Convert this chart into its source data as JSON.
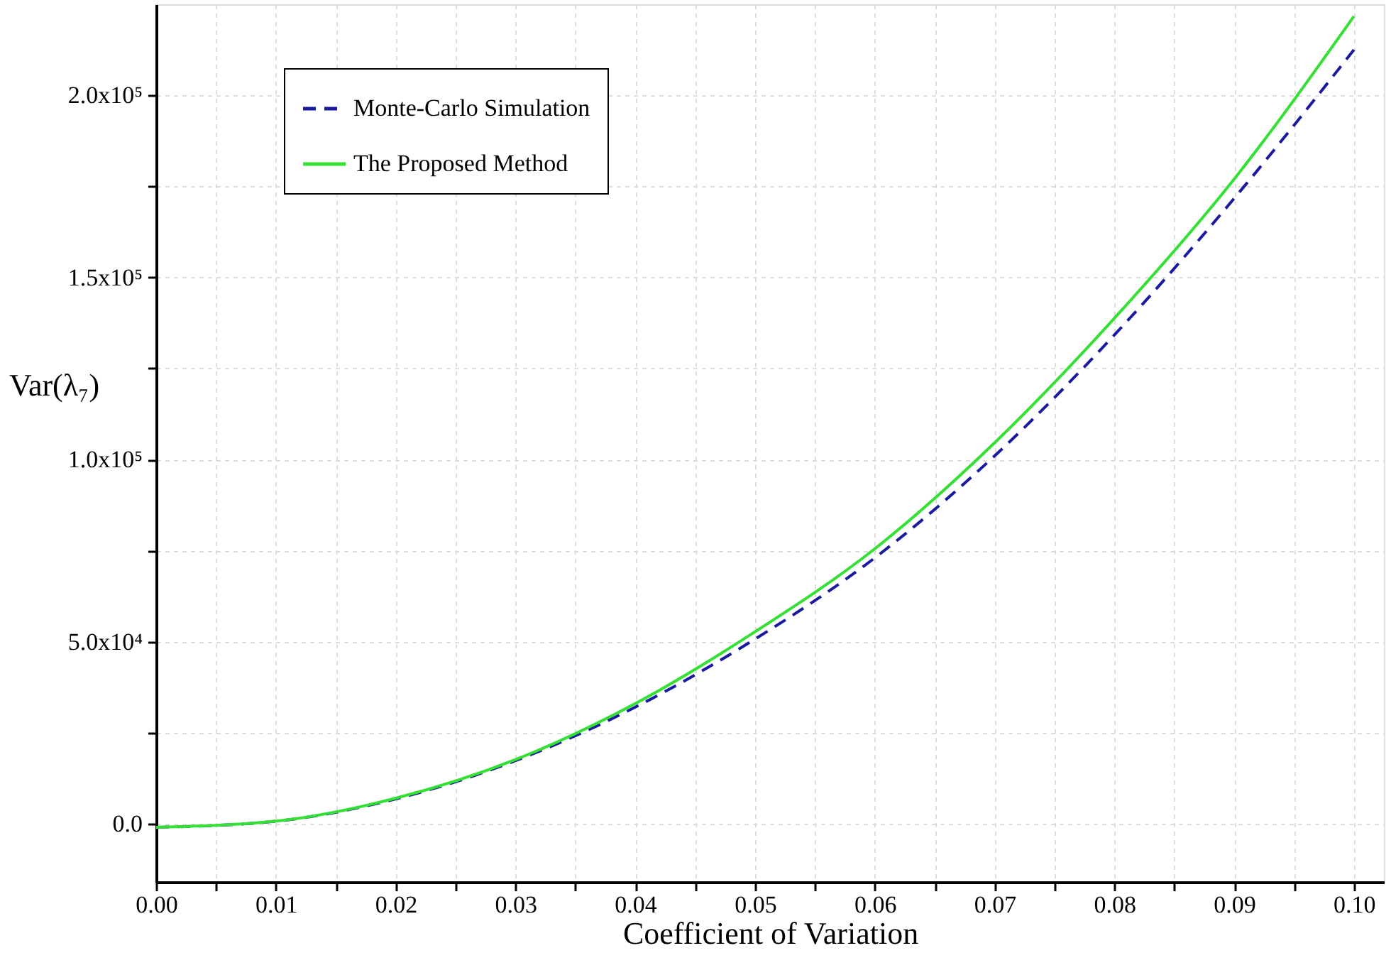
{
  "chart_data": {
    "type": "line",
    "xlabel": "Coefficient of Variation",
    "ylabel": "Var(λ₇)",
    "x": [
      0.0,
      0.01,
      0.02,
      0.03,
      0.04,
      0.05,
      0.06,
      0.07,
      0.08,
      0.09,
      0.1
    ],
    "series": [
      {
        "name": "Monte-Carlo Simulation",
        "color": "#1a1aa0",
        "line_style": "dashed",
        "values": [
          -1000,
          700,
          6800,
          17300,
          32000,
          50700,
          73000,
          101000,
          134200,
          171700,
          212500
        ]
      },
      {
        "name": "The Proposed Method",
        "color": "#33e033",
        "line_style": "solid",
        "values": [
          -1000,
          700,
          7000,
          17600,
          33000,
          52700,
          75500,
          104600,
          138800,
          177000,
          221700
        ]
      }
    ],
    "xlim": [
      0.0,
      0.1025
    ],
    "ylim": [
      -16000,
      225000
    ],
    "xticks": [
      {
        "value": 0.0,
        "label": "0.00"
      },
      {
        "value": 0.005,
        "label": null
      },
      0.01,
      {
        "value": 0.015,
        "label": null
      },
      0.02,
      {
        "value": 0.025,
        "label": null
      },
      0.03,
      {
        "value": 0.035,
        "label": null
      },
      0.04,
      {
        "value": 0.045,
        "label": null
      },
      0.05,
      {
        "value": 0.055,
        "label": null
      },
      0.06,
      {
        "value": 0.065,
        "label": null
      },
      0.07,
      {
        "value": 0.075,
        "label": null
      },
      0.08,
      {
        "value": 0.085,
        "label": null
      },
      0.09,
      {
        "value": 0.095,
        "label": null
      },
      {
        "value": 0.1,
        "label": "0.10"
      }
    ],
    "yticks": [
      {
        "value": 0,
        "label": "0.0"
      },
      {
        "value": 25000,
        "label": null
      },
      {
        "value": 50000,
        "label": "5.0x10⁴"
      },
      {
        "value": 75000,
        "label": null
      },
      {
        "value": 100000,
        "label": "1.0x10⁵"
      },
      {
        "value": 125000,
        "label": null
      },
      {
        "value": 150000,
        "label": "1.5x10⁵"
      },
      {
        "value": 175000,
        "label": null
      },
      {
        "value": 200000,
        "label": "2.0x10⁵"
      }
    ],
    "grid": true,
    "legend": "top left",
    "marker": "none"
  }
}
